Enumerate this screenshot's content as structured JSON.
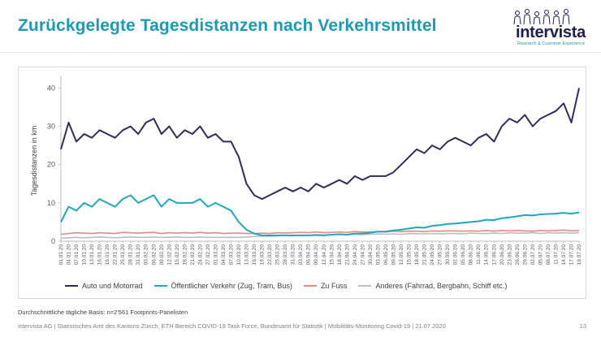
{
  "page": {
    "title": "Zurückgelegte Tagesdistanzen nach Verkehrsmittel",
    "logo_text": "intervista",
    "logo_tagline": "Research & Customer Experience",
    "basis_note": "Durchschnittliche tägliche Basis: n=2'561 Footprints-Panelisten",
    "footer": "intervista AG | Statistisches Amt des Kantons Zürich, ETH Bereich COVID-19 Task Force, Bundesamt für Statistik | Mobilitäts-Monitoring Covid-19 | 21.07.2020",
    "page_number": "13"
  },
  "colors": {
    "title": "#1b9bb3",
    "logo_dark": "#1d1f4f",
    "series_auto": "#2e2d5a",
    "series_ov": "#1fa7bf",
    "series_fuss": "#e58b80",
    "series_anderes": "#bdbdbd"
  },
  "chart_data": {
    "type": "line",
    "ylabel": "Tagesdistanzen in km",
    "xlabel": "",
    "ylim": [
      0,
      42
    ],
    "yticks": [
      0,
      10,
      20,
      30,
      40
    ],
    "grid": false,
    "legend_position": "bottom",
    "x": [
      "01.01.20",
      "04.01.20",
      "07.01.20",
      "10.01.20",
      "13.01.20",
      "16.01.20",
      "19.01.20",
      "22.01.20",
      "25.01.20",
      "28.01.20",
      "31.01.20",
      "03.02.20",
      "06.02.20",
      "09.02.20",
      "12.02.20",
      "15.02.20",
      "18.02.20",
      "21.02.20",
      "24.02.20",
      "27.02.20",
      "01.03.20",
      "04.03.20",
      "07.03.20",
      "10.03.20",
      "13.03.20",
      "16.03.20",
      "19.03.20",
      "22.03.20",
      "25.03.20",
      "28.03.20",
      "31.03.20",
      "03.04.20",
      "06.04.20",
      "09.04.20",
      "12.04.20",
      "15.04.20",
      "18.04.20",
      "21.04.20",
      "24.04.20",
      "27.04.20",
      "30.04.20",
      "03.05.20",
      "06.05.20",
      "09.05.20",
      "12.05.20",
      "15.05.20",
      "18.05.20",
      "21.05.20",
      "24.05.20",
      "27.05.20",
      "30.05.20",
      "02.06.20",
      "05.06.20",
      "08.06.20",
      "11.06.20",
      "14.06.20",
      "17.06.20",
      "20.06.20",
      "23.06.20",
      "26.06.20",
      "29.06.20",
      "02.07.20",
      "05.07.20",
      "08.07.20",
      "11.07.20",
      "14.07.20",
      "17.07.20",
      "19.07.20"
    ],
    "series": [
      {
        "name": "Auto und Motorrad",
        "color_key": "series_auto",
        "values": [
          24,
          31,
          26,
          28,
          27,
          29,
          28,
          27,
          29,
          30,
          28,
          31,
          32,
          28,
          30,
          27,
          29,
          28,
          30,
          27,
          28,
          26,
          26,
          22,
          15,
          12,
          11,
          12,
          13,
          14,
          13,
          14,
          13,
          15,
          14,
          15,
          16,
          15,
          17,
          16,
          17,
          17,
          17,
          18,
          20,
          22,
          24,
          23,
          25,
          24,
          26,
          27,
          26,
          25,
          27,
          28,
          26,
          30,
          32,
          31,
          33,
          30,
          32,
          33,
          34,
          36,
          31,
          40
        ]
      },
      {
        "name": "Öffentlicher Verkehr (Zug, Tram, Bus)",
        "color_key": "series_ov",
        "values": [
          5,
          9,
          8,
          10,
          9,
          11,
          10,
          9,
          11,
          12,
          10,
          11,
          12,
          9,
          11,
          10,
          10,
          10,
          11,
          9,
          10,
          9,
          8,
          5,
          3,
          2,
          1.5,
          1.5,
          1.5,
          1.5,
          1.5,
          1.5,
          1.5,
          1.6,
          1.5,
          1.7,
          1.8,
          1.7,
          2,
          2,
          2.2,
          2.5,
          2.5,
          2.8,
          3,
          3.3,
          3.6,
          3.5,
          4,
          4.2,
          4.5,
          4.6,
          4.8,
          5,
          5.2,
          5.6,
          5.5,
          6,
          6.2,
          6.5,
          6.8,
          6.7,
          7,
          7.1,
          7.2,
          7.4,
          7.2,
          7.5
        ]
      },
      {
        "name": "Zu Fuss",
        "color_key": "series_fuss",
        "values": [
          1.8,
          2,
          2.2,
          2.1,
          2,
          2.2,
          2.1,
          2,
          2.3,
          2.2,
          2.1,
          2.2,
          2.3,
          2,
          2.2,
          2.1,
          2.2,
          2.1,
          2.3,
          2.1,
          2.2,
          2,
          2.1,
          2.1,
          2,
          2,
          2.1,
          2,
          2.2,
          2.1,
          2.2,
          2.3,
          2.2,
          2.4,
          2.2,
          2.3,
          2.4,
          2.3,
          2.5,
          2.4,
          2.4,
          2.5,
          2.4,
          2.6,
          2.5,
          2.6,
          2.6,
          2.5,
          2.7,
          2.6,
          2.7,
          2.7,
          2.6,
          2.7,
          2.6,
          2.8,
          2.6,
          2.8,
          2.7,
          2.8,
          2.7,
          2.6,
          2.8,
          2.7,
          2.8,
          2.9,
          2.7,
          2.8
        ]
      },
      {
        "name": "Anderes (Fahrrad, Bergbahn, Schiff etc.)",
        "color_key": "series_anderes",
        "values": [
          0.8,
          0.9,
          1,
          0.9,
          1,
          1.1,
          1,
          0.9,
          1,
          1.1,
          1,
          1,
          1.1,
          1,
          1,
          1.1,
          1,
          1,
          1.1,
          1,
          1,
          1,
          1,
          1,
          1.1,
          1.2,
          1.3,
          1.3,
          1.4,
          1.5,
          1.4,
          1.6,
          1.5,
          1.7,
          1.6,
          1.7,
          1.8,
          1.7,
          1.8,
          1.7,
          1.8,
          1.9,
          1.8,
          1.9,
          1.8,
          2,
          1.9,
          1.9,
          2,
          1.9,
          2,
          2,
          1.9,
          2.1,
          2,
          2,
          2.1,
          2,
          2.2,
          2.1,
          2.1,
          2.2,
          2,
          2.2,
          2.1,
          2.2,
          2.1,
          2.2
        ]
      }
    ]
  }
}
